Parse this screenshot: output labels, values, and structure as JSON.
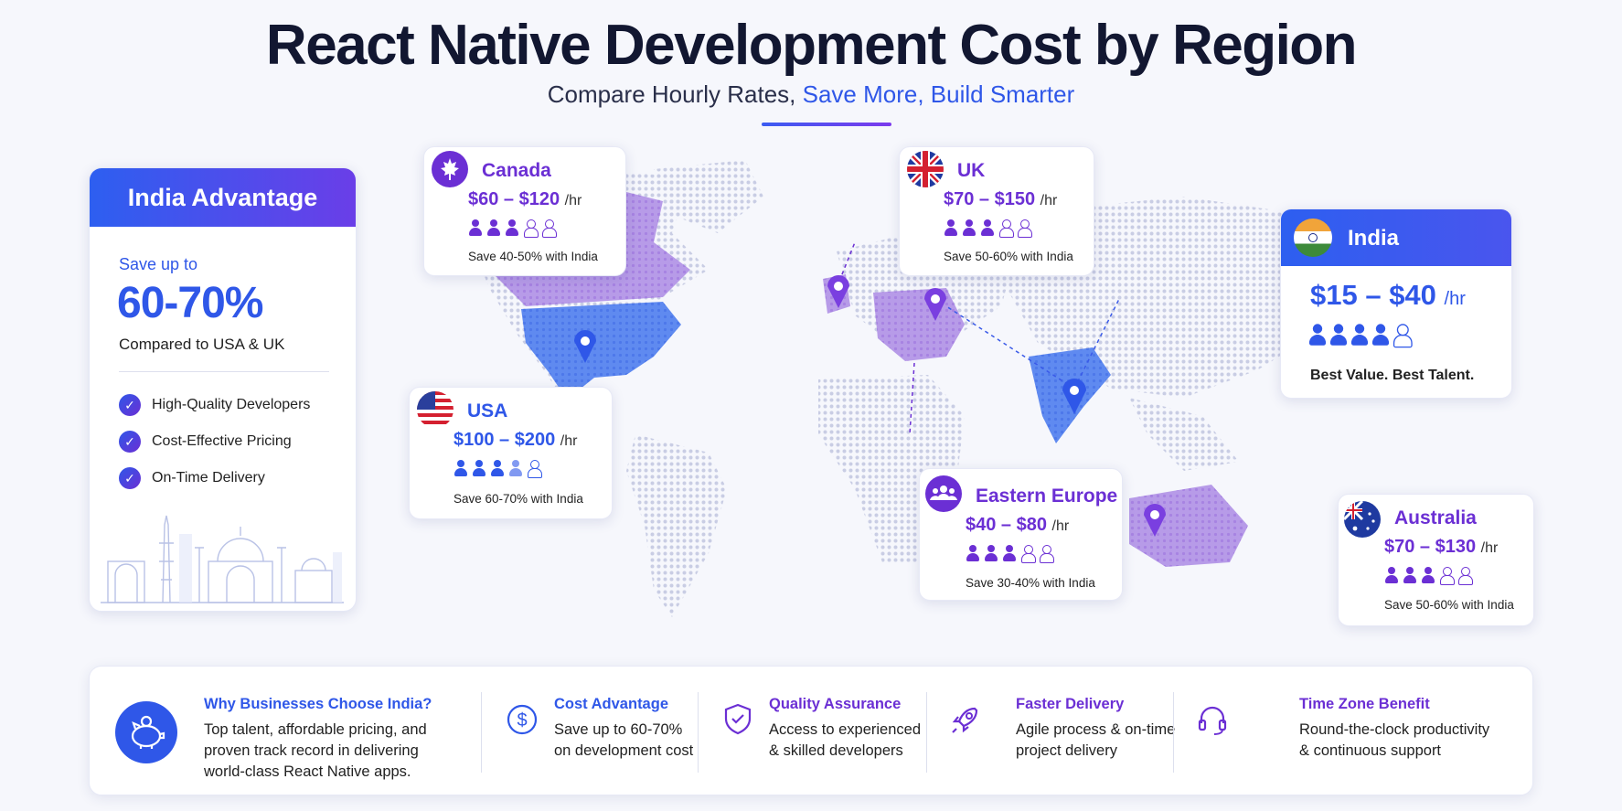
{
  "header": {
    "title": "React Native Development Cost by Region",
    "subtitle_plain": "Compare Hourly Rates,",
    "subtitle_highlight": "Save More, Build Smarter"
  },
  "advantage": {
    "title": "India Advantage",
    "save_label": "Save up to",
    "save_value": "60-70%",
    "compare_note": "Compared to USA & UK",
    "items": [
      "High-Quality Developers",
      "Cost-Effective Pricing",
      "On-Time Delivery"
    ]
  },
  "regions": {
    "canada": {
      "name": "Canada",
      "rate": "$60 – $120",
      "unit": "/hr",
      "talent_level": 3,
      "talent_max": 5,
      "note": "Save 40-50% with India"
    },
    "uk": {
      "name": "UK",
      "rate": "$70 – $150",
      "unit": "/hr",
      "talent_level": 3,
      "talent_max": 5,
      "note": "Save 50-60% with India"
    },
    "usa": {
      "name": "USA",
      "rate": "$100 – $200",
      "unit": "/hr",
      "talent_level": 3.5,
      "talent_max": 5,
      "note": "Save 60-70% with India"
    },
    "india": {
      "name": "India",
      "rate": "$15 – $40",
      "unit": "/hr",
      "talent_level": 4,
      "talent_max": 5,
      "note": "Best Value. Best Talent."
    },
    "eastern_europe": {
      "name": "Eastern Europe",
      "rate": "$40 – $80",
      "unit": "/hr",
      "talent_level": 3,
      "talent_max": 5,
      "note": "Save 30-40% with India"
    },
    "australia": {
      "name": "Australia",
      "rate": "$70 – $130",
      "unit": "/hr",
      "talent_level": 3,
      "talent_max": 5,
      "note": "Save 50-60% with India"
    }
  },
  "footer": {
    "why": {
      "title": "Why Businesses Choose India?",
      "text": [
        "Top talent, affordable pricing, and",
        "proven track record in delivering",
        "world-class React Native apps."
      ]
    },
    "cost": {
      "title": "Cost Advantage",
      "text": [
        "Save up to 60-70%",
        "on development cost"
      ]
    },
    "quality": {
      "title": "Quality Assurance",
      "text": [
        "Access to experienced",
        "& skilled developers"
      ]
    },
    "faster": {
      "title": "Faster Delivery",
      "text": [
        "Agile process & on-time",
        "project delivery"
      ]
    },
    "timezone": {
      "title": "Time Zone Benefit",
      "text": [
        "Round-the-clock productivity",
        "& continuous support"
      ]
    }
  },
  "icons": {
    "pin": "map-pin-icon",
    "piggy": "piggy-bank-icon",
    "dollar": "dollar-icon",
    "shield": "shield-check-icon",
    "rocket": "rocket-icon",
    "headset": "headset-icon",
    "group": "group-icon",
    "check": "check-icon"
  },
  "colors": {
    "blue": "#2f57e8",
    "purple": "#6b2fd4",
    "title": "#121731"
  }
}
